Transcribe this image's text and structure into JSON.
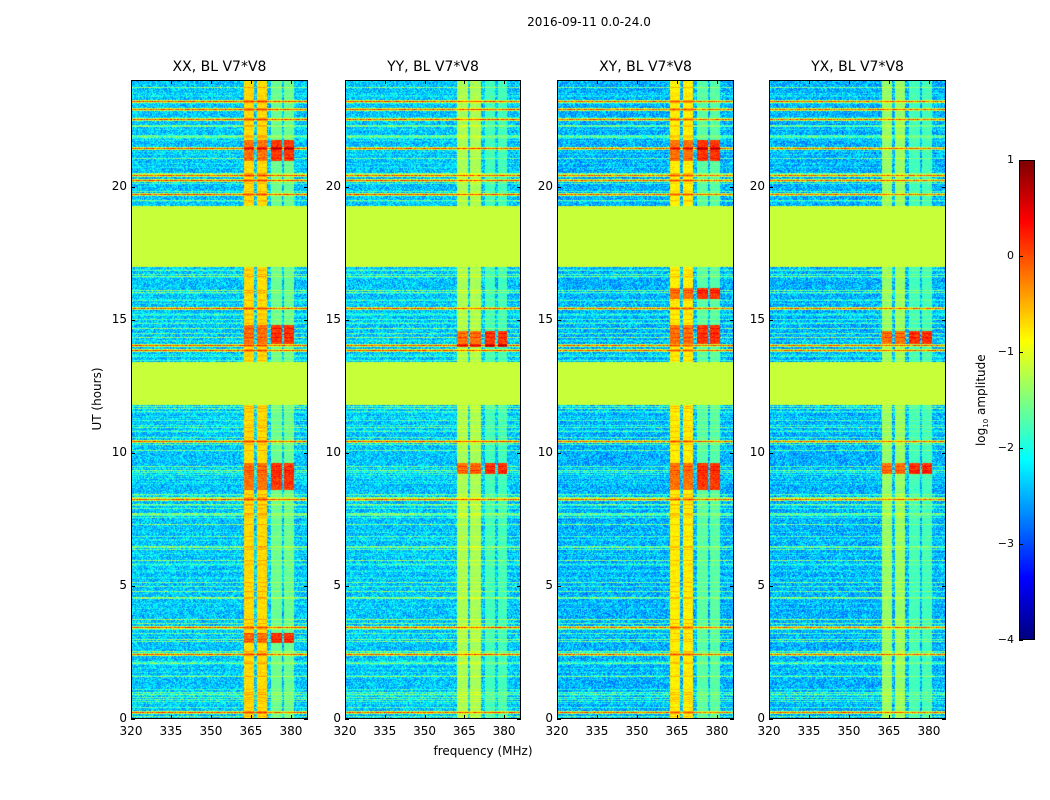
{
  "suptitle": "2016-09-11 0.0-24.0",
  "ylabel": "UT (hours)",
  "xlabel": "frequency (MHz)",
  "colorbar": {
    "label_prefix": "log",
    "label_sub": "10",
    "label_suffix": " amplitude",
    "range": [
      -4,
      1
    ],
    "ticks": [
      "1",
      "0",
      "−1",
      "−2",
      "−3",
      "−4"
    ],
    "tick_values": [
      1,
      0,
      -1,
      -2,
      -3,
      -4
    ],
    "colormap": "jet"
  },
  "chart_data": {
    "type": "heatmap",
    "title": "2016-09-11 0.0-24.0",
    "xlabel": "frequency (MHz)",
    "ylabel": "UT (hours)",
    "xlim": [
      320,
      386.4
    ],
    "ylim": [
      0,
      24
    ],
    "xticks": [
      320,
      335,
      350,
      365,
      380
    ],
    "xtick_labels": [
      "320",
      "335",
      "350",
      "365",
      "380"
    ],
    "yticks": [
      0,
      5,
      10,
      15,
      20
    ],
    "ytick_labels": [
      "0",
      "5",
      "10",
      "15",
      "20"
    ],
    "value_label": "log10 amplitude",
    "value_range": [
      -4,
      1
    ],
    "flagged_gaps_hours": [
      [
        11.8,
        13.4
      ],
      [
        17.0,
        19.3
      ]
    ],
    "flag_value": -1.15,
    "bright_rows_hours": [
      0.3,
      2.5,
      3.5,
      8.3,
      10.5,
      13.9,
      14.1,
      15.5,
      19.8,
      20.3,
      20.5,
      21.5,
      22.6,
      23.0,
      23.3
    ],
    "rfi_bands_mhz": [
      [
        362.5,
        366.5
      ],
      [
        367.5,
        371.5
      ],
      [
        373,
        377
      ],
      [
        378,
        381.5
      ]
    ],
    "panels": [
      {
        "title": "XX, BL V7*V8",
        "noise_level": -2.4,
        "rfi_level": [
          -0.7,
          -0.7,
          -1.6,
          -1.6
        ],
        "hot_hours": [
          [
            2.8,
            3.2
          ],
          [
            8.6,
            9.6
          ],
          [
            14.1,
            14.8
          ],
          [
            21.0,
            21.8
          ]
        ]
      },
      {
        "title": "YY, BL V7*V8",
        "noise_level": -2.4,
        "rfi_level": [
          -1.3,
          -1.3,
          -1.8,
          -1.8
        ],
        "hot_hours": [
          [
            14.0,
            14.6
          ],
          [
            9.2,
            9.6
          ]
        ]
      },
      {
        "title": "XY, BL V7*V8",
        "noise_level": -2.5,
        "rfi_level": [
          -0.8,
          -0.8,
          -1.7,
          -1.7
        ],
        "hot_hours": [
          [
            8.6,
            9.6
          ],
          [
            14.1,
            14.8
          ],
          [
            15.8,
            16.2
          ],
          [
            21.0,
            21.8
          ]
        ]
      },
      {
        "title": "YX, BL V7*V8",
        "noise_level": -2.5,
        "rfi_level": [
          -1.4,
          -1.4,
          -1.8,
          -1.8
        ],
        "hot_hours": [
          [
            14.1,
            14.6
          ],
          [
            9.2,
            9.6
          ]
        ]
      }
    ]
  }
}
